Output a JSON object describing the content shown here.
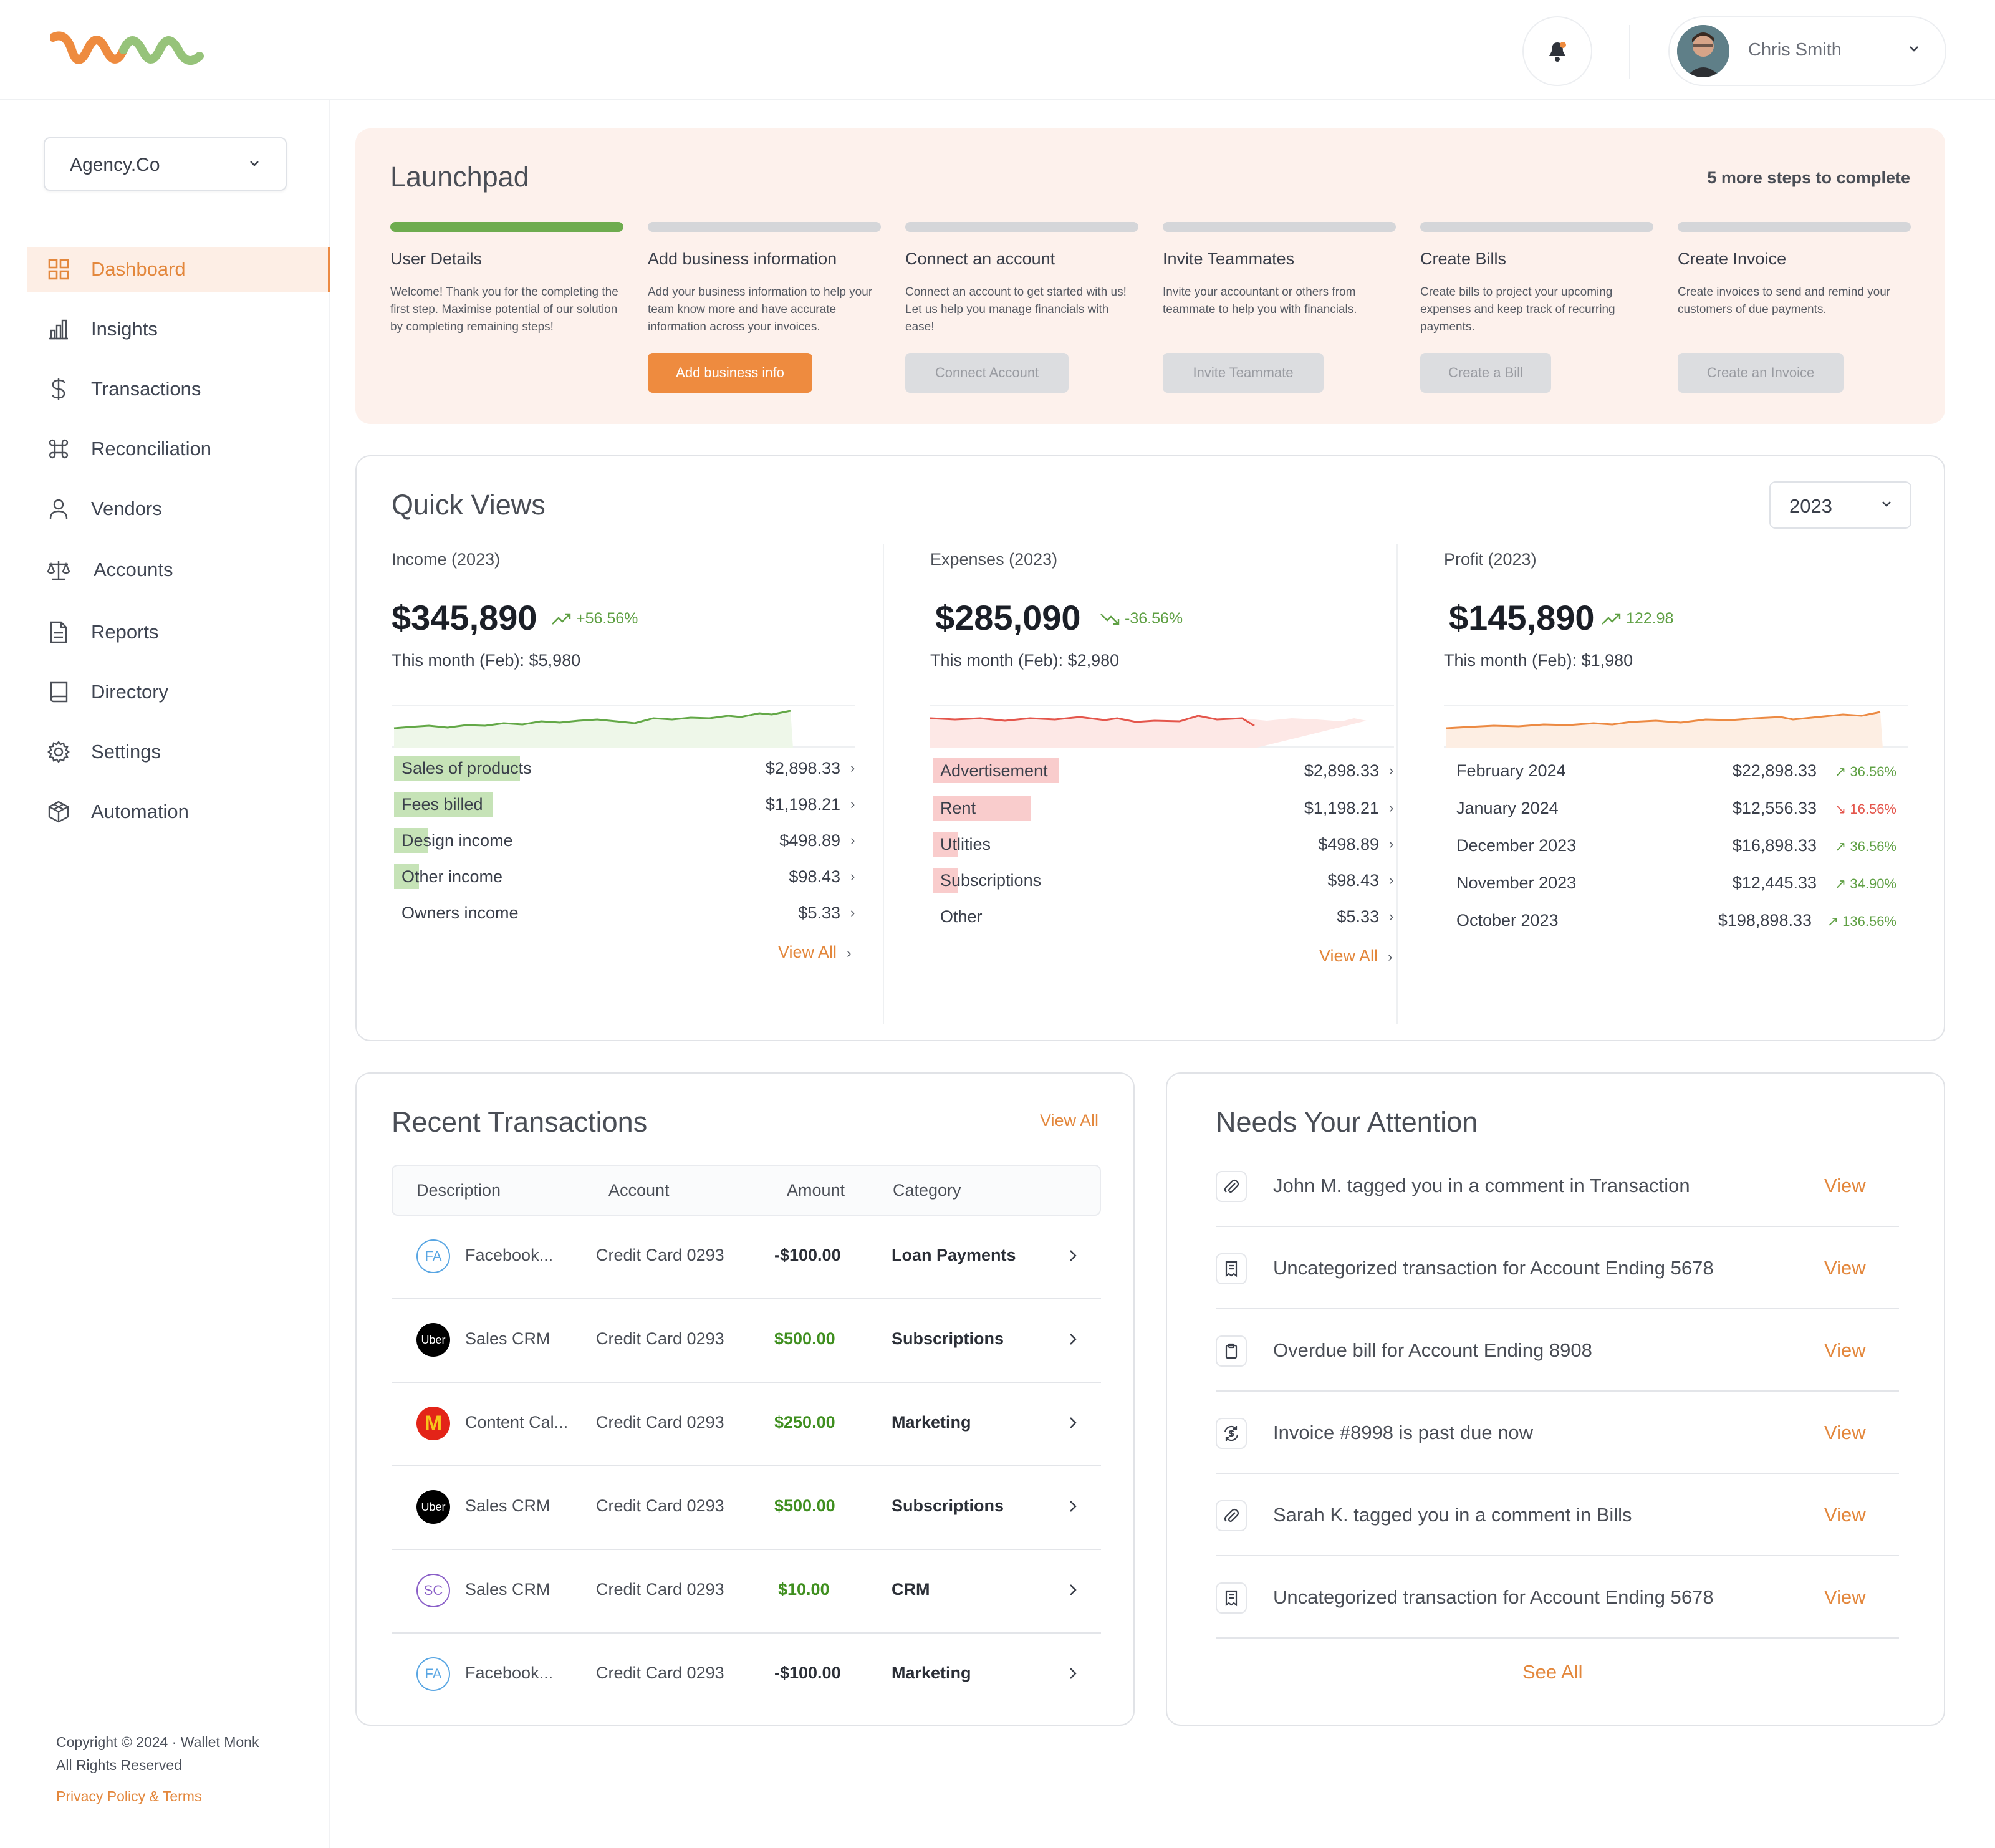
{
  "user": {
    "name": "Chris Smith"
  },
  "company": {
    "selected": "Agency.Co"
  },
  "nav": [
    {
      "label": "Dashboard",
      "icon": "dashboard-grid-icon",
      "active": true
    },
    {
      "label": "Insights",
      "icon": "bar-chart-icon"
    },
    {
      "label": "Transactions",
      "icon": "dollar-icon"
    },
    {
      "label": "Reconciliation",
      "icon": "command-icon"
    },
    {
      "label": "Vendors",
      "icon": "user-icon"
    },
    {
      "label": "Accounts",
      "icon": "scale-icon"
    },
    {
      "label": "Reports",
      "icon": "document-icon"
    },
    {
      "label": "Directory",
      "icon": "book-icon"
    },
    {
      "label": "Settings",
      "icon": "gear-icon"
    },
    {
      "label": "Automation",
      "icon": "cube-icon"
    }
  ],
  "footer": {
    "copyright": "Copyright © 2024 · Wallet Monk",
    "rights": "All Rights Reserved",
    "privacy": "Privacy Policy & Terms"
  },
  "launchpad": {
    "title": "Launchpad",
    "remaining": "5 more steps to complete",
    "steps": [
      {
        "title": "User Details",
        "desc": "Welcome! Thank you for the completing the first step. Maximise potential of our solution by completing remaining steps!",
        "done": true,
        "button": ""
      },
      {
        "title": "Add business information",
        "desc": "Add your business information to help your team know more and have accurate information across your invoices.",
        "done": false,
        "button": "Add business info"
      },
      {
        "title": "Connect an account",
        "desc": "Connect an account to get started with us! Let us help you manage financials with ease!",
        "done": false,
        "button": "Connect Account"
      },
      {
        "title": "Invite Teammates",
        "desc": "Invite your accountant or others from teammate to help you with financials.",
        "done": false,
        "button": "Invite Teammate"
      },
      {
        "title": "Create Bills",
        "desc": "Create bills to project your upcoming expenses and keep track of recurring payments.",
        "done": false,
        "button": "Create a Bill"
      },
      {
        "title": "Create Invoice",
        "desc": "Create invoices to send and remind your customers of due payments.",
        "done": false,
        "button": "Create an Invoice"
      }
    ]
  },
  "quick_views": {
    "title": "Quick Views",
    "year": "2023",
    "income": {
      "title": "Income (2023)",
      "total": "$345,890",
      "change": "+56.56%",
      "month": "This month (Feb): $5,980",
      "rows": [
        {
          "label": "Sales of products",
          "value": "$2,898.33",
          "share": 1.0
        },
        {
          "label": "Fees billed",
          "value": "$1,198.21",
          "share": 0.77
        },
        {
          "label": "Design income",
          "value": "$498.89",
          "share": 0.26
        },
        {
          "label": "Other income",
          "value": "$98.43",
          "share": 0.2
        },
        {
          "label": "Owners income",
          "value": "$5.33",
          "share": 0
        }
      ],
      "view_all": "View All"
    },
    "expenses": {
      "title": "Expenses (2023)",
      "total": "$285,090",
      "change": "-36.56%",
      "month": "This month (Feb): $2,980",
      "rows": [
        {
          "label": "Advertisement",
          "value": "$2,898.33",
          "share": 1.0
        },
        {
          "label": "Rent",
          "value": "$1,198.21",
          "share": 0.77
        },
        {
          "label": "Utlities",
          "value": "$498.89",
          "share": 0.2
        },
        {
          "label": "Subscriptions",
          "value": "$98.43",
          "share": 0.2
        },
        {
          "label": "Other",
          "value": "$5.33",
          "share": 0
        }
      ],
      "view_all": "View All"
    },
    "profit": {
      "title": "Profit (2023)",
      "total": "$145,890",
      "change": "122.98",
      "month": "This month (Feb): $1,980",
      "rows": [
        {
          "label": "February 2024",
          "value": "$22,898.33",
          "pct": "36.56%",
          "trend": "up"
        },
        {
          "label": "January 2024",
          "value": "$12,556.33",
          "pct": "16.56%",
          "trend": "down"
        },
        {
          "label": "December 2023",
          "value": "$16,898.33",
          "pct": "36.56%",
          "trend": "up"
        },
        {
          "label": "November 2023",
          "value": "$12,445.33",
          "pct": "34.90%",
          "trend": "up"
        },
        {
          "label": "October 2023",
          "value": "$198,898.33",
          "pct": "136.56%",
          "trend": "up"
        }
      ]
    }
  },
  "transactions": {
    "title": "Recent Transactions",
    "view_all": "View All",
    "columns": [
      "Description",
      "Account",
      "Amount",
      "Category"
    ],
    "rows": [
      {
        "logo": "FA",
        "desc": "Facebook...",
        "account": "Credit Card 0293",
        "amount": "-$100.00",
        "category": "Loan Payments",
        "negative": true
      },
      {
        "logo": "Uber",
        "desc": "Sales CRM",
        "account": "Credit Card 0293",
        "amount": "$500.00",
        "category": "Subscriptions"
      },
      {
        "logo": "M",
        "desc": "Content Cal...",
        "account": "Credit Card 0293",
        "amount": "$250.00",
        "category": "Marketing"
      },
      {
        "logo": "Uber",
        "desc": "Sales CRM",
        "account": "Credit Card 0293",
        "amount": "$500.00",
        "category": "Subscriptions"
      },
      {
        "logo": "SC",
        "desc": "Sales CRM",
        "account": "Credit Card 0293",
        "amount": "$10.00",
        "category": "CRM"
      },
      {
        "logo": "FA",
        "desc": "Facebook...",
        "account": "Credit Card 0293",
        "amount": "-$100.00",
        "category": "Marketing",
        "negative": true
      }
    ]
  },
  "attention": {
    "title": "Needs Your Attention",
    "see_all": "See All",
    "items": [
      {
        "icon": "paperclip-icon",
        "text": "John M. tagged you in a comment in Transaction",
        "action": "View"
      },
      {
        "icon": "receipt-icon",
        "text": "Uncategorized transaction for Account Ending 5678",
        "action": "View"
      },
      {
        "icon": "clipboard-icon",
        "text": "Overdue bill for Account Ending 8908",
        "action": "View"
      },
      {
        "icon": "dollar-cycle-icon",
        "text": "Invoice #8998 is past due now",
        "action": "View"
      },
      {
        "icon": "paperclip-icon",
        "text": "Sarah K. tagged you in a comment in Bills",
        "action": "View"
      },
      {
        "icon": "receipt-icon",
        "text": "Uncategorized transaction for Account Ending 5678",
        "action": "View"
      }
    ]
  },
  "colors": {
    "accent": "#ee8b3f",
    "green": "#6eac4f",
    "red": "#e45a4f"
  }
}
